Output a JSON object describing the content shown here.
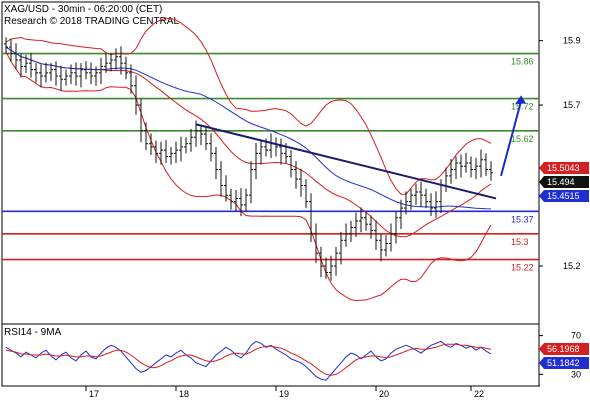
{
  "header": {
    "line1": "XAG/USD - 30min - 06:20:00 (CET)",
    "line2": "Research © 2018 TRADING CENTRAL"
  },
  "chart_data": [
    {
      "type": "candlestick",
      "y_ticks": [
        {
          "value": 15.2,
          "label": "15.2"
        },
        {
          "value": 15.7,
          "label": "15.7"
        },
        {
          "value": 15.9,
          "label": "15.9"
        }
      ],
      "x_ticks": [
        {
          "label": "17",
          "slot": 16
        },
        {
          "label": "18",
          "slot": 34
        },
        {
          "label": "19",
          "slot": 54
        },
        {
          "label": "20",
          "slot": 74
        },
        {
          "label": "22",
          "slot": 93
        }
      ],
      "price_range": [
        15.02,
        16.02
      ],
      "horizontal_levels": [
        {
          "value": 15.86,
          "label": "15.86",
          "color": "#3a8a2e"
        },
        {
          "value": 15.72,
          "label": "15.72",
          "color": "#3a8a2e"
        },
        {
          "value": 15.62,
          "label": "15.62",
          "color": "#3a8a2e"
        },
        {
          "value": 15.37,
          "label": "15.37",
          "color": "#1f2fd0"
        },
        {
          "value": 15.3,
          "label": "15.3",
          "color": "#d42020"
        },
        {
          "value": 15.22,
          "label": "15.22",
          "color": "#d42020"
        }
      ],
      "price_tags": [
        {
          "value": 15.5043,
          "label": "15.5043",
          "color": "#d42020"
        },
        {
          "value": 15.494,
          "label": "15.494",
          "color": "#111111"
        },
        {
          "value": 15.4515,
          "label": "15.4515",
          "color": "#1f2fd0"
        }
      ],
      "trendline": {
        "from": {
          "slot": 38,
          "price": 15.64
        },
        "to": {
          "slot": 98,
          "price": 15.41
        }
      },
      "target_arrow": {
        "from": {
          "slot": 99,
          "price": 15.48
        },
        "to": {
          "slot": 103,
          "price": 15.73
        }
      },
      "colors": {
        "candles": "#111111",
        "bollinger": "#d42020",
        "moving_average": "#1f2fd0",
        "trendline": "#1a1a6e"
      },
      "closes": [
        15.88,
        15.86,
        15.84,
        15.82,
        15.83,
        15.81,
        15.8,
        15.79,
        15.8,
        15.81,
        15.79,
        15.78,
        15.79,
        15.8,
        15.79,
        15.81,
        15.8,
        15.79,
        15.8,
        15.82,
        15.83,
        15.84,
        15.85,
        15.83,
        15.8,
        15.76,
        15.7,
        15.62,
        15.58,
        15.57,
        15.55,
        15.56,
        15.54,
        15.55,
        15.56,
        15.57,
        15.58,
        15.6,
        15.62,
        15.61,
        15.58,
        15.55,
        15.5,
        15.45,
        15.42,
        15.4,
        15.41,
        15.39,
        15.42,
        15.5,
        15.55,
        15.57,
        15.56,
        15.58,
        15.57,
        15.55,
        15.54,
        15.5,
        15.47,
        15.45,
        15.4,
        15.3,
        15.24,
        15.2,
        15.18,
        15.2,
        15.24,
        15.28,
        15.3,
        15.32,
        15.34,
        15.35,
        15.33,
        15.31,
        15.28,
        15.25,
        15.27,
        15.3,
        15.35,
        15.38,
        15.4,
        15.42,
        15.43,
        15.42,
        15.4,
        15.38,
        15.4,
        15.45,
        15.48,
        15.5,
        15.52,
        15.51,
        15.52,
        15.5,
        15.51,
        15.53,
        15.5,
        15.49
      ]
    },
    {
      "type": "line",
      "title": "RSI14 - 9MA",
      "y_ticks": [
        {
          "value": 70,
          "label": "70"
        },
        {
          "value": 30,
          "label": "30"
        }
      ],
      "y_range": [
        18,
        82
      ],
      "value_tags": [
        {
          "value": 56.1968,
          "label": "56.1968",
          "color": "#d42020"
        },
        {
          "value": 51.1842,
          "label": "51.1842",
          "color": "#1f2fd0"
        }
      ],
      "series": [
        {
          "color": "#1f2fd0",
          "values": [
            58,
            55,
            52,
            48,
            53,
            50,
            47,
            52,
            55,
            49,
            45,
            50,
            53,
            47,
            44,
            50,
            54,
            48,
            46,
            52,
            57,
            60,
            58,
            54,
            48,
            42,
            36,
            32,
            34,
            38,
            42,
            46,
            50,
            48,
            52,
            55,
            50,
            47,
            42,
            40,
            38,
            44,
            50,
            54,
            58,
            55,
            50,
            47,
            52,
            60,
            64,
            62,
            58,
            60,
            56,
            53,
            50,
            46,
            44,
            42,
            38,
            33,
            28,
            25,
            24,
            30,
            36,
            42,
            48,
            52,
            50,
            46,
            50,
            54,
            48,
            44,
            46,
            52,
            56,
            58,
            60,
            58,
            55,
            52,
            56,
            60,
            62,
            64,
            60,
            58,
            62,
            60,
            57,
            59,
            55,
            58,
            54,
            51
          ]
        },
        {
          "color": "#d42020",
          "values": [
            55,
            54,
            53,
            51,
            51,
            50,
            50,
            50,
            51,
            50,
            49,
            49,
            50,
            49,
            48,
            48,
            49,
            49,
            48,
            49,
            51,
            53,
            55,
            55,
            53,
            50,
            46,
            42,
            39,
            37,
            37,
            39,
            42,
            44,
            47,
            49,
            50,
            50,
            48,
            46,
            44,
            43,
            44,
            46,
            49,
            51,
            52,
            51,
            51,
            53,
            56,
            58,
            59,
            59,
            58,
            57,
            55,
            52,
            50,
            47,
            44,
            41,
            37,
            33,
            30,
            29,
            30,
            33,
            37,
            41,
            45,
            47,
            48,
            49,
            49,
            48,
            47,
            48,
            50,
            52,
            54,
            56,
            57,
            56,
            56,
            57,
            58,
            60,
            61,
            61,
            61,
            60,
            60,
            59,
            58,
            58,
            57,
            56
          ]
        }
      ]
    }
  ]
}
